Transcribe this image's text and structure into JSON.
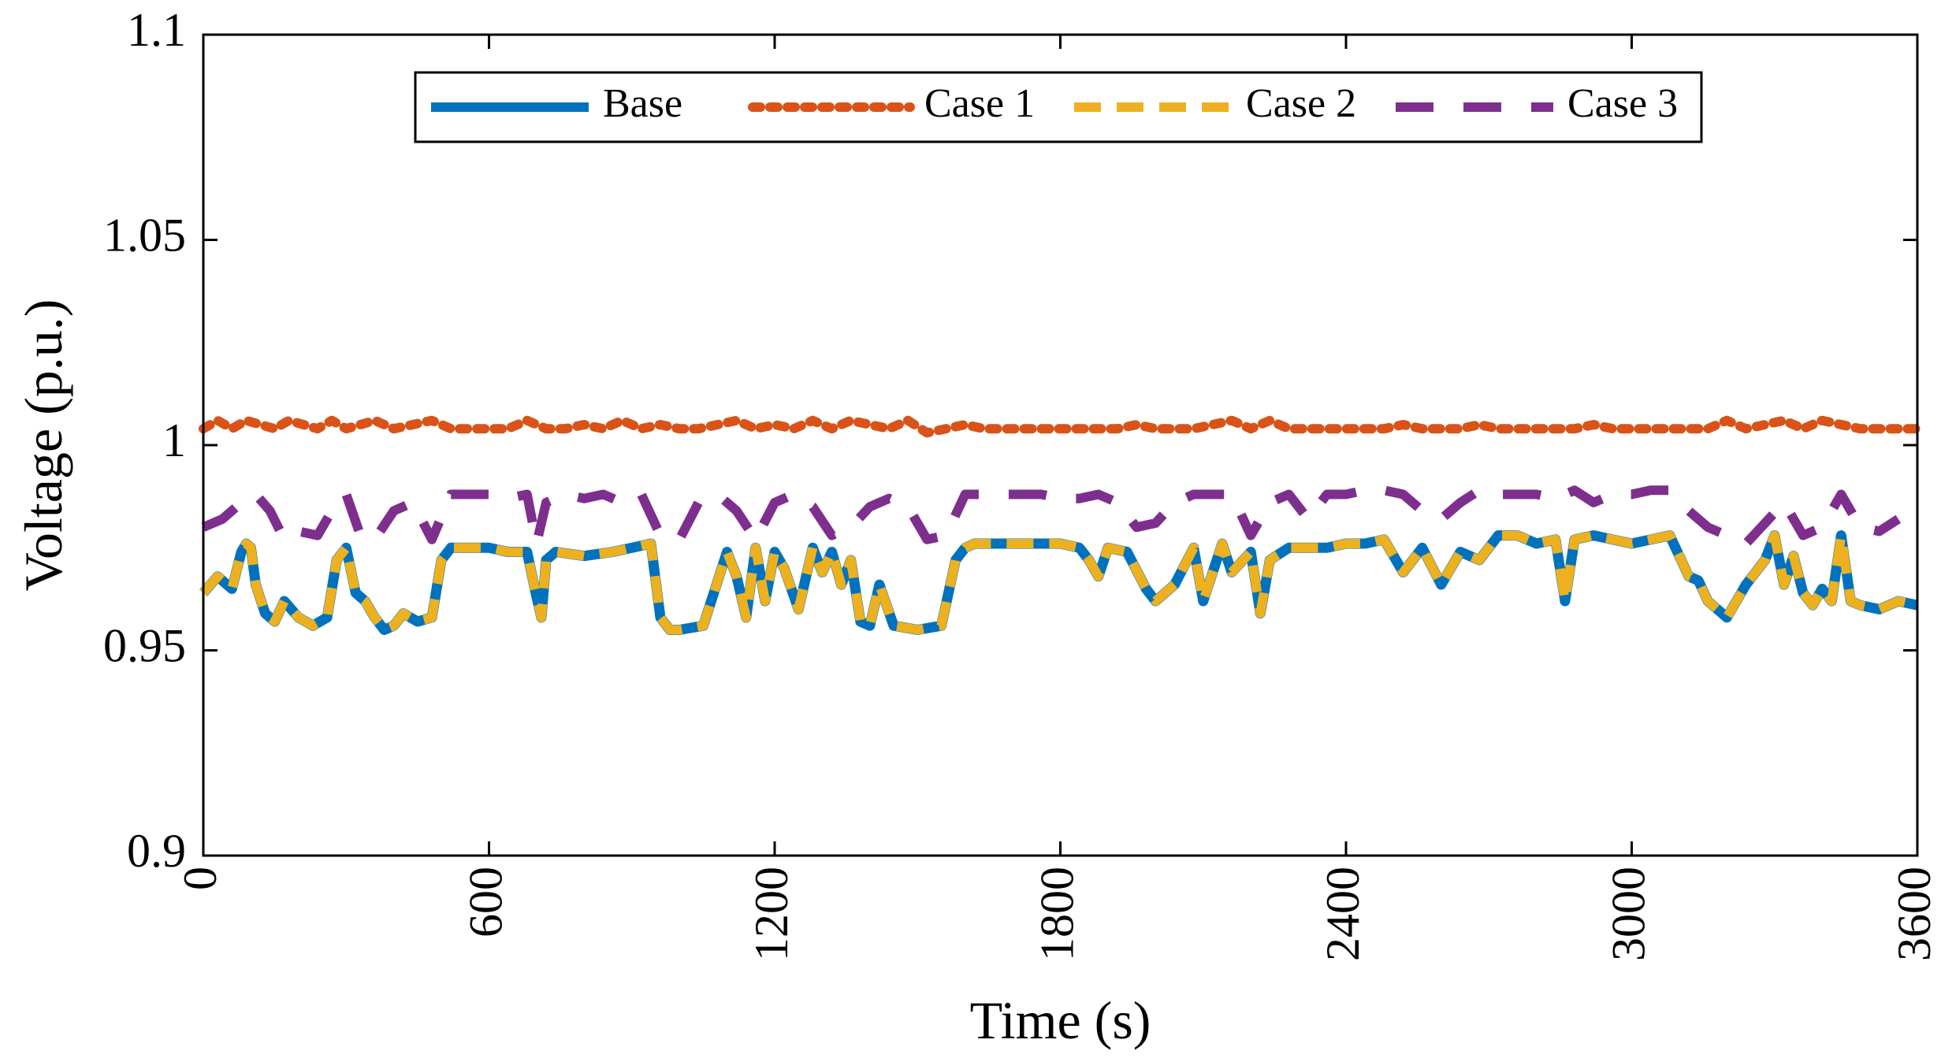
{
  "chart_data": {
    "type": "line",
    "title": "",
    "xlabel": "Time (s)",
    "ylabel": "Voltage (p.u.)",
    "xlim": [
      0,
      3600
    ],
    "ylim": [
      0.9,
      1.1
    ],
    "xticks": [
      0,
      600,
      1200,
      1800,
      2400,
      3000,
      3600
    ],
    "xtick_labels": [
      "0",
      "600",
      "1200",
      "1800",
      "2400",
      "3000",
      "3600"
    ],
    "yticks": [
      0.9,
      0.95,
      1.0,
      1.05,
      1.1
    ],
    "ytick_labels": [
      "0.9",
      "0.95",
      "1",
      "1.05",
      "1.1"
    ],
    "grid": false,
    "legend_position": "top",
    "series": [
      {
        "name": "Base",
        "color": "#0072BD",
        "style": "solid",
        "x": [
          0,
          30,
          60,
          80,
          90,
          100,
          110,
          130,
          150,
          170,
          200,
          230,
          260,
          280,
          300,
          320,
          340,
          360,
          380,
          400,
          420,
          450,
          480,
          500,
          520,
          560,
          600,
          640,
          680,
          700,
          710,
          720,
          740,
          800,
          860,
          900,
          940,
          960,
          980,
          1000,
          1050,
          1100,
          1120,
          1140,
          1160,
          1180,
          1200,
          1220,
          1250,
          1280,
          1300,
          1320,
          1340,
          1360,
          1380,
          1400,
          1420,
          1450,
          1500,
          1550,
          1580,
          1600,
          1620,
          1650,
          1700,
          1750,
          1800,
          1840,
          1860,
          1880,
          1900,
          1940,
          1980,
          2000,
          2040,
          2080,
          2100,
          2140,
          2160,
          2200,
          2220,
          2240,
          2280,
          2320,
          2360,
          2400,
          2440,
          2480,
          2520,
          2560,
          2600,
          2640,
          2680,
          2720,
          2760,
          2800,
          2840,
          2860,
          2880,
          2920,
          2960,
          3000,
          3040,
          3080,
          3120,
          3140,
          3160,
          3200,
          3240,
          3280,
          3300,
          3320,
          3340,
          3360,
          3380,
          3400,
          3420,
          3440,
          3460,
          3480,
          3520,
          3560,
          3600
        ],
        "values": [
          0.964,
          0.968,
          0.965,
          0.974,
          0.976,
          0.975,
          0.966,
          0.959,
          0.957,
          0.962,
          0.958,
          0.956,
          0.958,
          0.972,
          0.975,
          0.964,
          0.962,
          0.958,
          0.955,
          0.956,
          0.959,
          0.957,
          0.958,
          0.972,
          0.975,
          0.975,
          0.975,
          0.974,
          0.974,
          0.963,
          0.958,
          0.972,
          0.974,
          0.973,
          0.974,
          0.975,
          0.976,
          0.958,
          0.955,
          0.955,
          0.956,
          0.974,
          0.968,
          0.958,
          0.975,
          0.962,
          0.974,
          0.97,
          0.96,
          0.975,
          0.969,
          0.974,
          0.966,
          0.972,
          0.957,
          0.956,
          0.966,
          0.956,
          0.955,
          0.956,
          0.972,
          0.975,
          0.976,
          0.976,
          0.976,
          0.976,
          0.976,
          0.975,
          0.972,
          0.968,
          0.975,
          0.974,
          0.965,
          0.962,
          0.966,
          0.975,
          0.962,
          0.976,
          0.969,
          0.974,
          0.959,
          0.972,
          0.975,
          0.975,
          0.975,
          0.976,
          0.976,
          0.977,
          0.969,
          0.975,
          0.966,
          0.974,
          0.972,
          0.978,
          0.978,
          0.976,
          0.977,
          0.962,
          0.977,
          0.978,
          0.977,
          0.976,
          0.977,
          0.978,
          0.968,
          0.967,
          0.962,
          0.958,
          0.966,
          0.972,
          0.978,
          0.966,
          0.973,
          0.964,
          0.961,
          0.965,
          0.962,
          0.978,
          0.962,
          0.961,
          0.96,
          0.962,
          0.961
        ]
      },
      {
        "name": "Case 1",
        "color": "#D95319",
        "style": "dotted",
        "x": [
          0,
          30,
          60,
          90,
          120,
          150,
          180,
          210,
          240,
          270,
          300,
          330,
          360,
          400,
          440,
          480,
          520,
          560,
          600,
          640,
          680,
          720,
          760,
          800,
          840,
          880,
          920,
          960,
          1000,
          1040,
          1080,
          1120,
          1160,
          1200,
          1240,
          1280,
          1320,
          1360,
          1400,
          1440,
          1480,
          1520,
          1560,
          1600,
          1640,
          1680,
          1720,
          1760,
          1800,
          1840,
          1880,
          1920,
          1960,
          2000,
          2040,
          2080,
          2120,
          2160,
          2200,
          2240,
          2280,
          2320,
          2360,
          2400,
          2440,
          2480,
          2520,
          2560,
          2600,
          2640,
          2680,
          2720,
          2760,
          2800,
          2840,
          2880,
          2920,
          2960,
          3000,
          3040,
          3080,
          3120,
          3160,
          3200,
          3240,
          3280,
          3320,
          3360,
          3400,
          3440,
          3480,
          3520,
          3560,
          3600
        ],
        "values": [
          1.004,
          1.006,
          1.004,
          1.006,
          1.005,
          1.004,
          1.006,
          1.005,
          1.004,
          1.006,
          1.004,
          1.005,
          1.006,
          1.004,
          1.005,
          1.006,
          1.004,
          1.004,
          1.004,
          1.004,
          1.006,
          1.004,
          1.004,
          1.005,
          1.004,
          1.006,
          1.004,
          1.005,
          1.004,
          1.004,
          1.005,
          1.006,
          1.004,
          1.005,
          1.004,
          1.006,
          1.004,
          1.006,
          1.005,
          1.004,
          1.006,
          1.003,
          1.004,
          1.005,
          1.004,
          1.004,
          1.004,
          1.004,
          1.004,
          1.004,
          1.004,
          1.004,
          1.005,
          1.004,
          1.004,
          1.004,
          1.005,
          1.006,
          1.004,
          1.006,
          1.004,
          1.004,
          1.004,
          1.004,
          1.004,
          1.004,
          1.005,
          1.004,
          1.004,
          1.004,
          1.005,
          1.004,
          1.004,
          1.004,
          1.004,
          1.004,
          1.005,
          1.004,
          1.004,
          1.004,
          1.004,
          1.004,
          1.004,
          1.006,
          1.004,
          1.005,
          1.006,
          1.004,
          1.006,
          1.005,
          1.004,
          1.004,
          1.004,
          1.004
        ]
      },
      {
        "name": "Case 2",
        "color": "#EDB120",
        "style": "dashed",
        "x": [
          0,
          30,
          60,
          80,
          90,
          100,
          110,
          130,
          150,
          170,
          200,
          230,
          260,
          280,
          300,
          320,
          340,
          360,
          380,
          400,
          420,
          450,
          480,
          500,
          520,
          560,
          600,
          640,
          680,
          700,
          710,
          720,
          740,
          800,
          860,
          900,
          940,
          960,
          980,
          1000,
          1050,
          1100,
          1120,
          1140,
          1160,
          1180,
          1200,
          1220,
          1250,
          1280,
          1300,
          1320,
          1340,
          1360,
          1380,
          1400,
          1420,
          1450,
          1500,
          1550,
          1580,
          1600,
          1620,
          1650,
          1700,
          1750,
          1800,
          1840,
          1860,
          1880,
          1900,
          1940,
          1980,
          2000,
          2040,
          2080,
          2100,
          2140,
          2160,
          2200,
          2220,
          2240,
          2280,
          2320,
          2360,
          2400,
          2440,
          2480,
          2520,
          2560,
          2600,
          2640,
          2680,
          2720,
          2760,
          2800,
          2840,
          2860,
          2880,
          2920,
          2960,
          3000,
          3040,
          3080,
          3120,
          3140,
          3160,
          3200,
          3240,
          3280,
          3300,
          3320,
          3340,
          3360,
          3380,
          3400,
          3420,
          3440,
          3460,
          3480,
          3520,
          3560,
          3600
        ],
        "values": [
          0.964,
          0.968,
          0.965,
          0.974,
          0.976,
          0.975,
          0.966,
          0.959,
          0.957,
          0.962,
          0.958,
          0.956,
          0.958,
          0.972,
          0.975,
          0.964,
          0.962,
          0.958,
          0.955,
          0.956,
          0.959,
          0.957,
          0.958,
          0.972,
          0.975,
          0.975,
          0.975,
          0.974,
          0.974,
          0.963,
          0.958,
          0.972,
          0.974,
          0.973,
          0.974,
          0.975,
          0.976,
          0.958,
          0.955,
          0.955,
          0.956,
          0.974,
          0.968,
          0.958,
          0.975,
          0.962,
          0.974,
          0.97,
          0.96,
          0.975,
          0.969,
          0.974,
          0.966,
          0.972,
          0.957,
          0.956,
          0.966,
          0.956,
          0.955,
          0.956,
          0.972,
          0.975,
          0.976,
          0.976,
          0.976,
          0.976,
          0.976,
          0.975,
          0.972,
          0.968,
          0.975,
          0.974,
          0.965,
          0.962,
          0.966,
          0.975,
          0.962,
          0.976,
          0.969,
          0.974,
          0.959,
          0.972,
          0.975,
          0.975,
          0.975,
          0.976,
          0.976,
          0.977,
          0.969,
          0.975,
          0.966,
          0.974,
          0.972,
          0.978,
          0.978,
          0.976,
          0.977,
          0.962,
          0.977,
          0.978,
          0.977,
          0.976,
          0.977,
          0.978,
          0.968,
          0.967,
          0.962,
          0.958,
          0.966,
          0.972,
          0.978,
          0.966,
          0.973,
          0.964,
          0.961,
          0.965,
          0.962,
          0.978,
          0.962,
          0.961,
          0.96,
          0.962,
          0.961
        ]
      },
      {
        "name": "Case 3",
        "color": "#7E2F8E",
        "style": "longdash",
        "x": [
          0,
          40,
          80,
          110,
          140,
          170,
          200,
          240,
          280,
          300,
          330,
          360,
          400,
          440,
          480,
          520,
          560,
          600,
          640,
          680,
          700,
          720,
          760,
          800,
          840,
          880,
          920,
          960,
          1000,
          1040,
          1080,
          1120,
          1160,
          1200,
          1240,
          1280,
          1320,
          1360,
          1400,
          1440,
          1480,
          1520,
          1560,
          1600,
          1640,
          1680,
          1720,
          1760,
          1800,
          1840,
          1880,
          1920,
          1960,
          2000,
          2040,
          2080,
          2120,
          2160,
          2200,
          2240,
          2280,
          2320,
          2360,
          2400,
          2440,
          2480,
          2520,
          2560,
          2600,
          2640,
          2680,
          2720,
          2760,
          2800,
          2840,
          2880,
          2920,
          2960,
          3000,
          3040,
          3080,
          3120,
          3160,
          3200,
          3240,
          3280,
          3320,
          3360,
          3400,
          3440,
          3480,
          3520,
          3560
        ],
        "values": [
          0.98,
          0.982,
          0.986,
          0.988,
          0.984,
          0.977,
          0.979,
          0.978,
          0.986,
          0.988,
          0.978,
          0.977,
          0.984,
          0.986,
          0.977,
          0.988,
          0.988,
          0.988,
          0.987,
          0.988,
          0.976,
          0.986,
          0.988,
          0.987,
          0.988,
          0.986,
          0.988,
          0.978,
          0.977,
          0.986,
          0.988,
          0.984,
          0.977,
          0.986,
          0.988,
          0.985,
          0.978,
          0.98,
          0.985,
          0.987,
          0.985,
          0.977,
          0.978,
          0.988,
          0.988,
          0.988,
          0.988,
          0.988,
          0.987,
          0.987,
          0.988,
          0.986,
          0.98,
          0.981,
          0.986,
          0.988,
          0.988,
          0.988,
          0.978,
          0.986,
          0.988,
          0.982,
          0.988,
          0.988,
          0.989,
          0.989,
          0.988,
          0.984,
          0.982,
          0.986,
          0.989,
          0.988,
          0.988,
          0.988,
          0.987,
          0.989,
          0.986,
          0.988,
          0.988,
          0.989,
          0.989,
          0.984,
          0.98,
          0.978,
          0.976,
          0.981,
          0.986,
          0.978,
          0.98,
          0.988,
          0.98,
          0.979,
          0.982
        ]
      }
    ]
  }
}
